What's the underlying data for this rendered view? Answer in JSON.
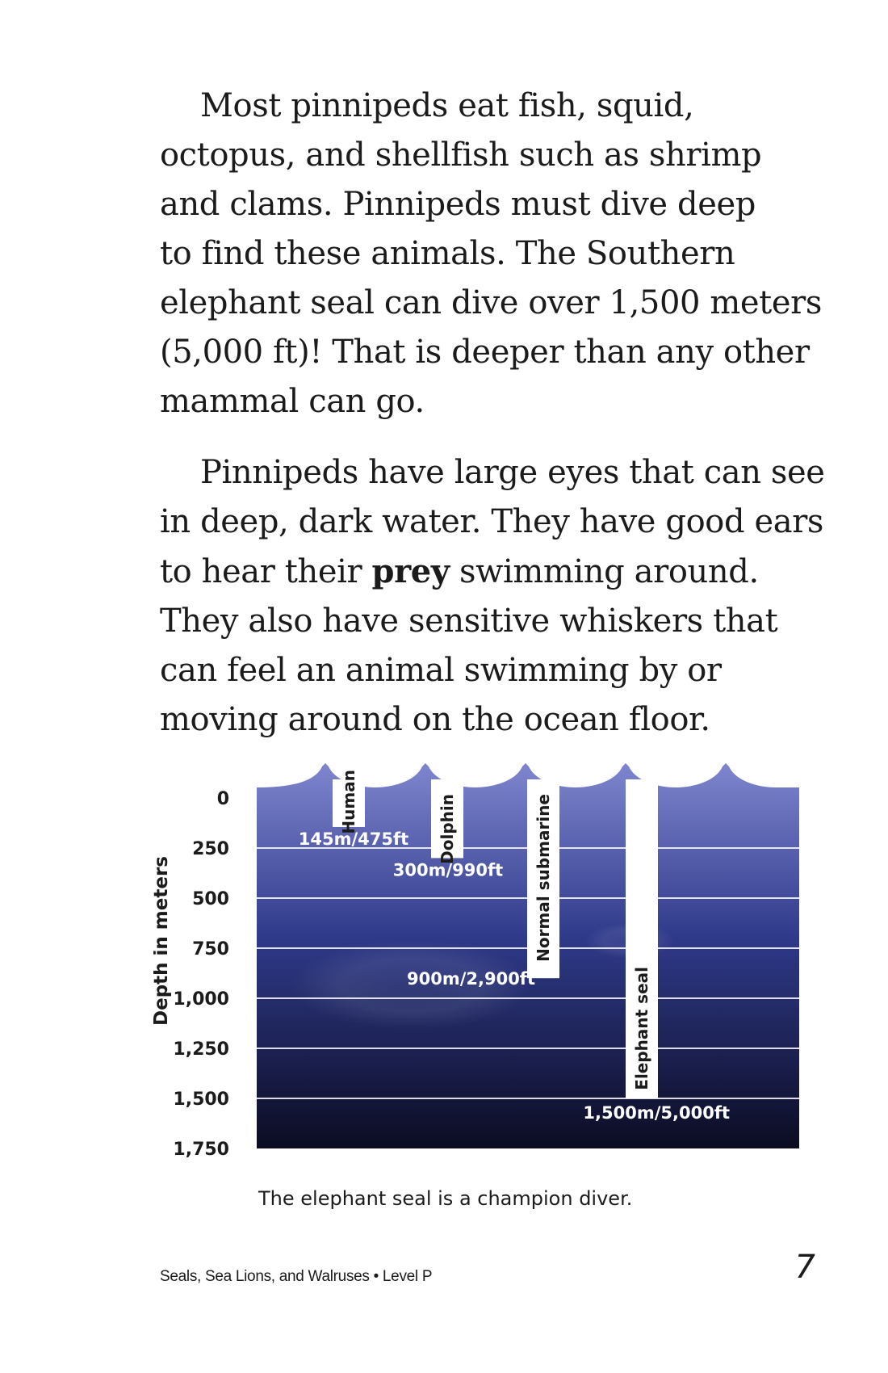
{
  "paragraphs": [
    {
      "lines": [
        "Most pinnipeds eat fish, squid,",
        "octopus, and shellfish such as shrimp",
        "and clams. Pinnipeds must dive deep",
        "to find these animals. The Southern",
        "elephant seal can dive over 1,500 meters",
        "(5,000 ft)! That is deeper than any other",
        "mammal can go."
      ]
    },
    {
      "lines": [
        "Pinnipeds have large eyes that can see",
        "in deep, dark water. They have good ears"
      ],
      "line3": {
        "before": "to hear their ",
        "bold": "prey",
        "after": " swimming around."
      },
      "rest": [
        "They also have sensitive whiskers that",
        "can feel an animal swimming by or",
        "moving around on the ocean floor."
      ]
    }
  ],
  "chart_data": {
    "type": "bar",
    "orientation": "vertical-down",
    "ylabel": "Depth in meters",
    "ylim": [
      0,
      1750
    ],
    "yticks": [
      "0",
      "250",
      "500",
      "750",
      "1,000",
      "1,250",
      "1,500",
      "1,750"
    ],
    "ytick_values": [
      0,
      250,
      500,
      750,
      1000,
      1250,
      1500,
      1750
    ],
    "grid": true,
    "categories": [
      "Human",
      "Dolphin",
      "Normal submarine",
      "Elephant seal"
    ],
    "values": [
      145,
      300,
      900,
      1500
    ],
    "depth_labels": [
      "145m/475ft",
      "300m/990ft",
      "900m/2,900ft",
      "1,500m/5,000ft"
    ],
    "colors": {
      "water_top": "#7f86cf",
      "water_mid": "#2f3a8a",
      "water_bottom": "#0b0c22",
      "bar": "#ffffff"
    }
  },
  "caption": "The elephant seal is a champion diver.",
  "footer": {
    "title": "Seals, Sea Lions, and Walruses • Level P",
    "page_number": "7"
  }
}
